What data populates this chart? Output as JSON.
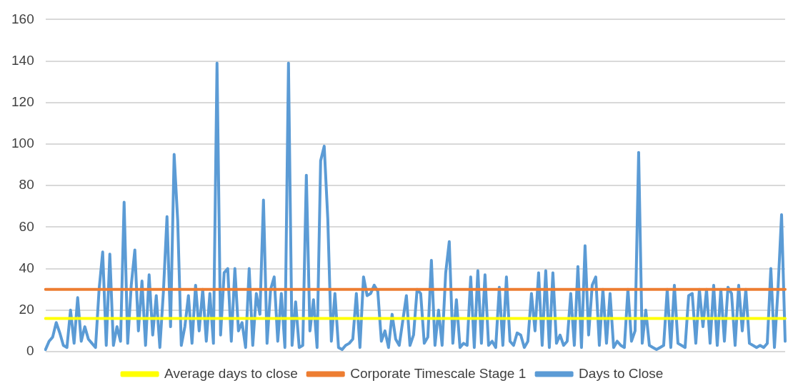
{
  "chart_data": {
    "type": "line",
    "categories": [
      null,
      null,
      null,
      null,
      null,
      null,
      null,
      null,
      null,
      null,
      null,
      null,
      null,
      null,
      null,
      null,
      null,
      null,
      null,
      null,
      null,
      null,
      null,
      null,
      null,
      null,
      null,
      null,
      null,
      null,
      null,
      null,
      null,
      null,
      null,
      null,
      null,
      null,
      null,
      null,
      null,
      null,
      null,
      null,
      null,
      null,
      null,
      null,
      null,
      null,
      null,
      null,
      null,
      null,
      null,
      null,
      null,
      null,
      null,
      null,
      null,
      null,
      null,
      null,
      null,
      null,
      null,
      null,
      null,
      null,
      null,
      null,
      null,
      null,
      null,
      null,
      null,
      null,
      null,
      null,
      null,
      null,
      null,
      null,
      null,
      null,
      null,
      null,
      null,
      null,
      null,
      null,
      null,
      null,
      null,
      null,
      null,
      null,
      null,
      null,
      null,
      null,
      null,
      null,
      null,
      null,
      null,
      null,
      null,
      null,
      null,
      null,
      null,
      null,
      null,
      null,
      null,
      null,
      null,
      null,
      null,
      null,
      null,
      null,
      null,
      null,
      null,
      null,
      null,
      null,
      null,
      null,
      null,
      null,
      null,
      null,
      null,
      null,
      null,
      null,
      null,
      null,
      null,
      null,
      null,
      null,
      null,
      null,
      null,
      null,
      null,
      null,
      null,
      null,
      null,
      null,
      null,
      null,
      null,
      null,
      null,
      null,
      null,
      null,
      null,
      null,
      null,
      null,
      null,
      null,
      null,
      null,
      null,
      null,
      null,
      null,
      null,
      null,
      null,
      null,
      null,
      null,
      null,
      null,
      null,
      null,
      null,
      null,
      null,
      null,
      null,
      null,
      null,
      null,
      null,
      null,
      null,
      null,
      null,
      null,
      null,
      null,
      null,
      null,
      null,
      null,
      null,
      null
    ],
    "series": [
      {
        "name": "Days to Close",
        "color": "#5b9bd5",
        "values": [
          1,
          5,
          7,
          14,
          9,
          3,
          2,
          20,
          4,
          26,
          5,
          12,
          6,
          4,
          2,
          30,
          48,
          3,
          47,
          3,
          12,
          5,
          72,
          4,
          32,
          49,
          10,
          34,
          3,
          37,
          8,
          27,
          2,
          29,
          65,
          12,
          95,
          63,
          3,
          12,
          27,
          4,
          32,
          10,
          30,
          5,
          28,
          4,
          139,
          8,
          38,
          40,
          5,
          40,
          10,
          14,
          2,
          40,
          3,
          28,
          18,
          73,
          4,
          30,
          36,
          5,
          28,
          2,
          139,
          3,
          24,
          2,
          3,
          85,
          10,
          25,
          2,
          92,
          99,
          64,
          5,
          28,
          2,
          1,
          3,
          4,
          6,
          28,
          2,
          36,
          27,
          28,
          32,
          29,
          5,
          10,
          2,
          18,
          6,
          3,
          15,
          27,
          3,
          8,
          30,
          28,
          4,
          7,
          44,
          3,
          20,
          3,
          38,
          53,
          4,
          25,
          2,
          4,
          3,
          36,
          2,
          39,
          4,
          37,
          3,
          5,
          2,
          31,
          3,
          36,
          5,
          3,
          9,
          8,
          2,
          5,
          28,
          10,
          38,
          3,
          39,
          2,
          38,
          4,
          8,
          3,
          5,
          28,
          3,
          41,
          2,
          51,
          8,
          32,
          36,
          3,
          30,
          4,
          28,
          2,
          5,
          3,
          2,
          30,
          5,
          10,
          96,
          4,
          20,
          3,
          2,
          1,
          2,
          3,
          30,
          2,
          32,
          4,
          3,
          2,
          27,
          28,
          4,
          30,
          12,
          30,
          4,
          32,
          3,
          30,
          5,
          31,
          28,
          3,
          32,
          10,
          30,
          4,
          3,
          2,
          3,
          2,
          4,
          40,
          2,
          30,
          66,
          5
        ]
      },
      {
        "name": "Corporate Timescale Stage 1",
        "color": "#ed7d31",
        "values": [
          30,
          30,
          30,
          30,
          30,
          30,
          30,
          30,
          30,
          30,
          30,
          30,
          30,
          30,
          30,
          30,
          30,
          30,
          30,
          30,
          30,
          30,
          30,
          30,
          30,
          30,
          30,
          30,
          30,
          30,
          30,
          30,
          30,
          30,
          30,
          30,
          30,
          30,
          30,
          30,
          30,
          30,
          30,
          30,
          30,
          30,
          30,
          30,
          30,
          30,
          30,
          30,
          30,
          30,
          30,
          30,
          30,
          30,
          30,
          30,
          30,
          30,
          30,
          30,
          30,
          30,
          30,
          30,
          30,
          30,
          30,
          30,
          30,
          30,
          30,
          30,
          30,
          30,
          30,
          30,
          30,
          30,
          30,
          30,
          30,
          30,
          30,
          30,
          30,
          30,
          30,
          30,
          30,
          30,
          30,
          30,
          30,
          30,
          30,
          30,
          30,
          30,
          30,
          30,
          30,
          30,
          30,
          30,
          30,
          30,
          30,
          30,
          30,
          30,
          30,
          30,
          30,
          30,
          30,
          30,
          30,
          30,
          30,
          30,
          30,
          30,
          30,
          30,
          30,
          30,
          30,
          30,
          30,
          30,
          30,
          30,
          30,
          30,
          30,
          30,
          30,
          30,
          30,
          30,
          30,
          30,
          30,
          30,
          30,
          30,
          30,
          30,
          30,
          30,
          30,
          30,
          30,
          30,
          30,
          30,
          30,
          30,
          30,
          30,
          30,
          30,
          30,
          30,
          30,
          30,
          30,
          30,
          30,
          30,
          30,
          30,
          30,
          30,
          30,
          30,
          30,
          30,
          30,
          30,
          30,
          30,
          30,
          30,
          30,
          30,
          30,
          30,
          30,
          30,
          30,
          30,
          30,
          30,
          30,
          30,
          30,
          30,
          30,
          30,
          30,
          30,
          30,
          30
        ]
      },
      {
        "name": "Average days to close",
        "color": "#ffff00",
        "values": [
          16,
          16,
          16,
          16,
          16,
          16,
          16,
          16,
          16,
          16,
          16,
          16,
          16,
          16,
          16,
          16,
          16,
          16,
          16,
          16,
          16,
          16,
          16,
          16,
          16,
          16,
          16,
          16,
          16,
          16,
          16,
          16,
          16,
          16,
          16,
          16,
          16,
          16,
          16,
          16,
          16,
          16,
          16,
          16,
          16,
          16,
          16,
          16,
          16,
          16,
          16,
          16,
          16,
          16,
          16,
          16,
          16,
          16,
          16,
          16,
          16,
          16,
          16,
          16,
          16,
          16,
          16,
          16,
          16,
          16,
          16,
          16,
          16,
          16,
          16,
          16,
          16,
          16,
          16,
          16,
          16,
          16,
          16,
          16,
          16,
          16,
          16,
          16,
          16,
          16,
          16,
          16,
          16,
          16,
          16,
          16,
          16,
          16,
          16,
          16,
          16,
          16,
          16,
          16,
          16,
          16,
          16,
          16,
          16,
          16,
          16,
          16,
          16,
          16,
          16,
          16,
          16,
          16,
          16,
          16,
          16,
          16,
          16,
          16,
          16,
          16,
          16,
          16,
          16,
          16,
          16,
          16,
          16,
          16,
          16,
          16,
          16,
          16,
          16,
          16,
          16,
          16,
          16,
          16,
          16,
          16,
          16,
          16,
          16,
          16,
          16,
          16,
          16,
          16,
          16,
          16,
          16,
          16,
          16,
          16,
          16,
          16,
          16,
          16,
          16,
          16,
          16,
          16,
          16,
          16,
          16,
          16,
          16,
          16,
          16,
          16,
          16,
          16,
          16,
          16,
          16,
          16,
          16,
          16,
          16,
          16,
          16,
          16,
          16,
          16,
          16,
          16,
          16,
          16,
          16,
          16,
          16,
          16,
          16,
          16,
          16,
          16,
          16,
          16,
          16,
          16,
          16,
          16
        ]
      }
    ],
    "ylim": [
      0,
      160
    ],
    "yticks": [
      0,
      20,
      40,
      60,
      80,
      100,
      120,
      140,
      160
    ],
    "grid": "y",
    "legend": "bottom",
    "marker": "none",
    "line_style": "solid",
    "tick_labels": "y"
  }
}
